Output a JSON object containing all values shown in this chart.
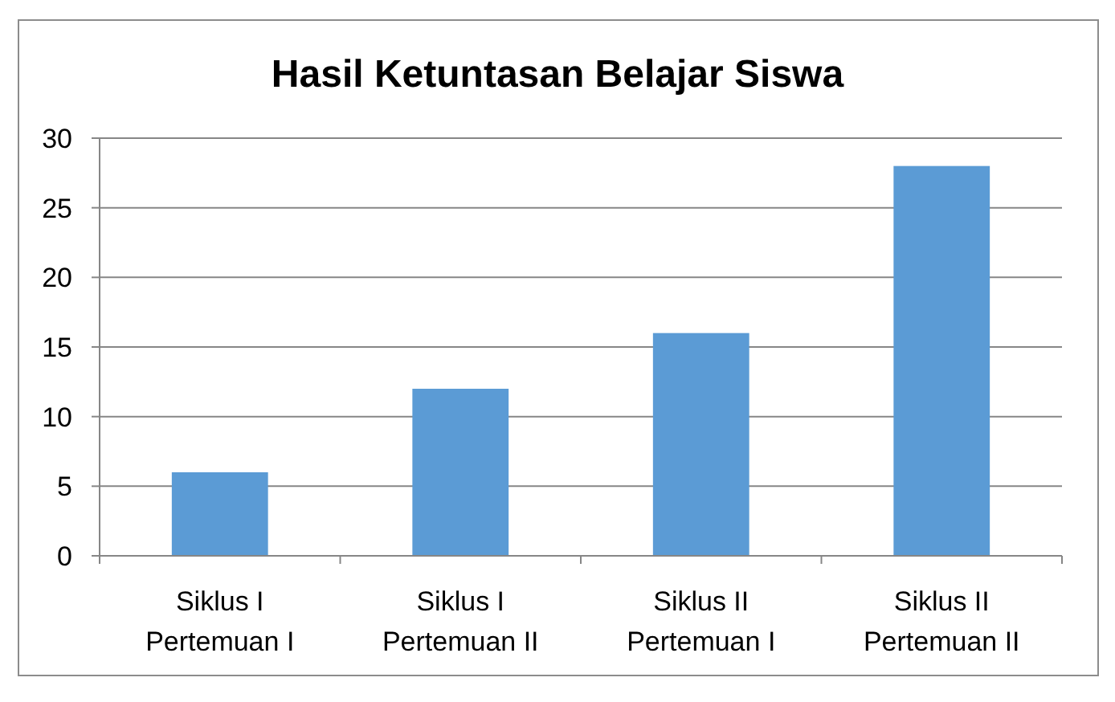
{
  "chart_data": {
    "type": "bar",
    "title": "Hasil Ketuntasan Belajar Siswa",
    "categories": [
      "Siklus I\nPertemuan I",
      "Siklus I\nPertemuan II",
      "Siklus II\nPertemuan I",
      "Siklus II\nPertemuan II"
    ],
    "values": [
      6,
      12,
      16,
      28
    ],
    "color": "#5b9bd5",
    "ylim": [
      0,
      30
    ],
    "yticks": [
      0,
      5,
      10,
      15,
      20,
      25,
      30
    ],
    "grid": "y"
  }
}
